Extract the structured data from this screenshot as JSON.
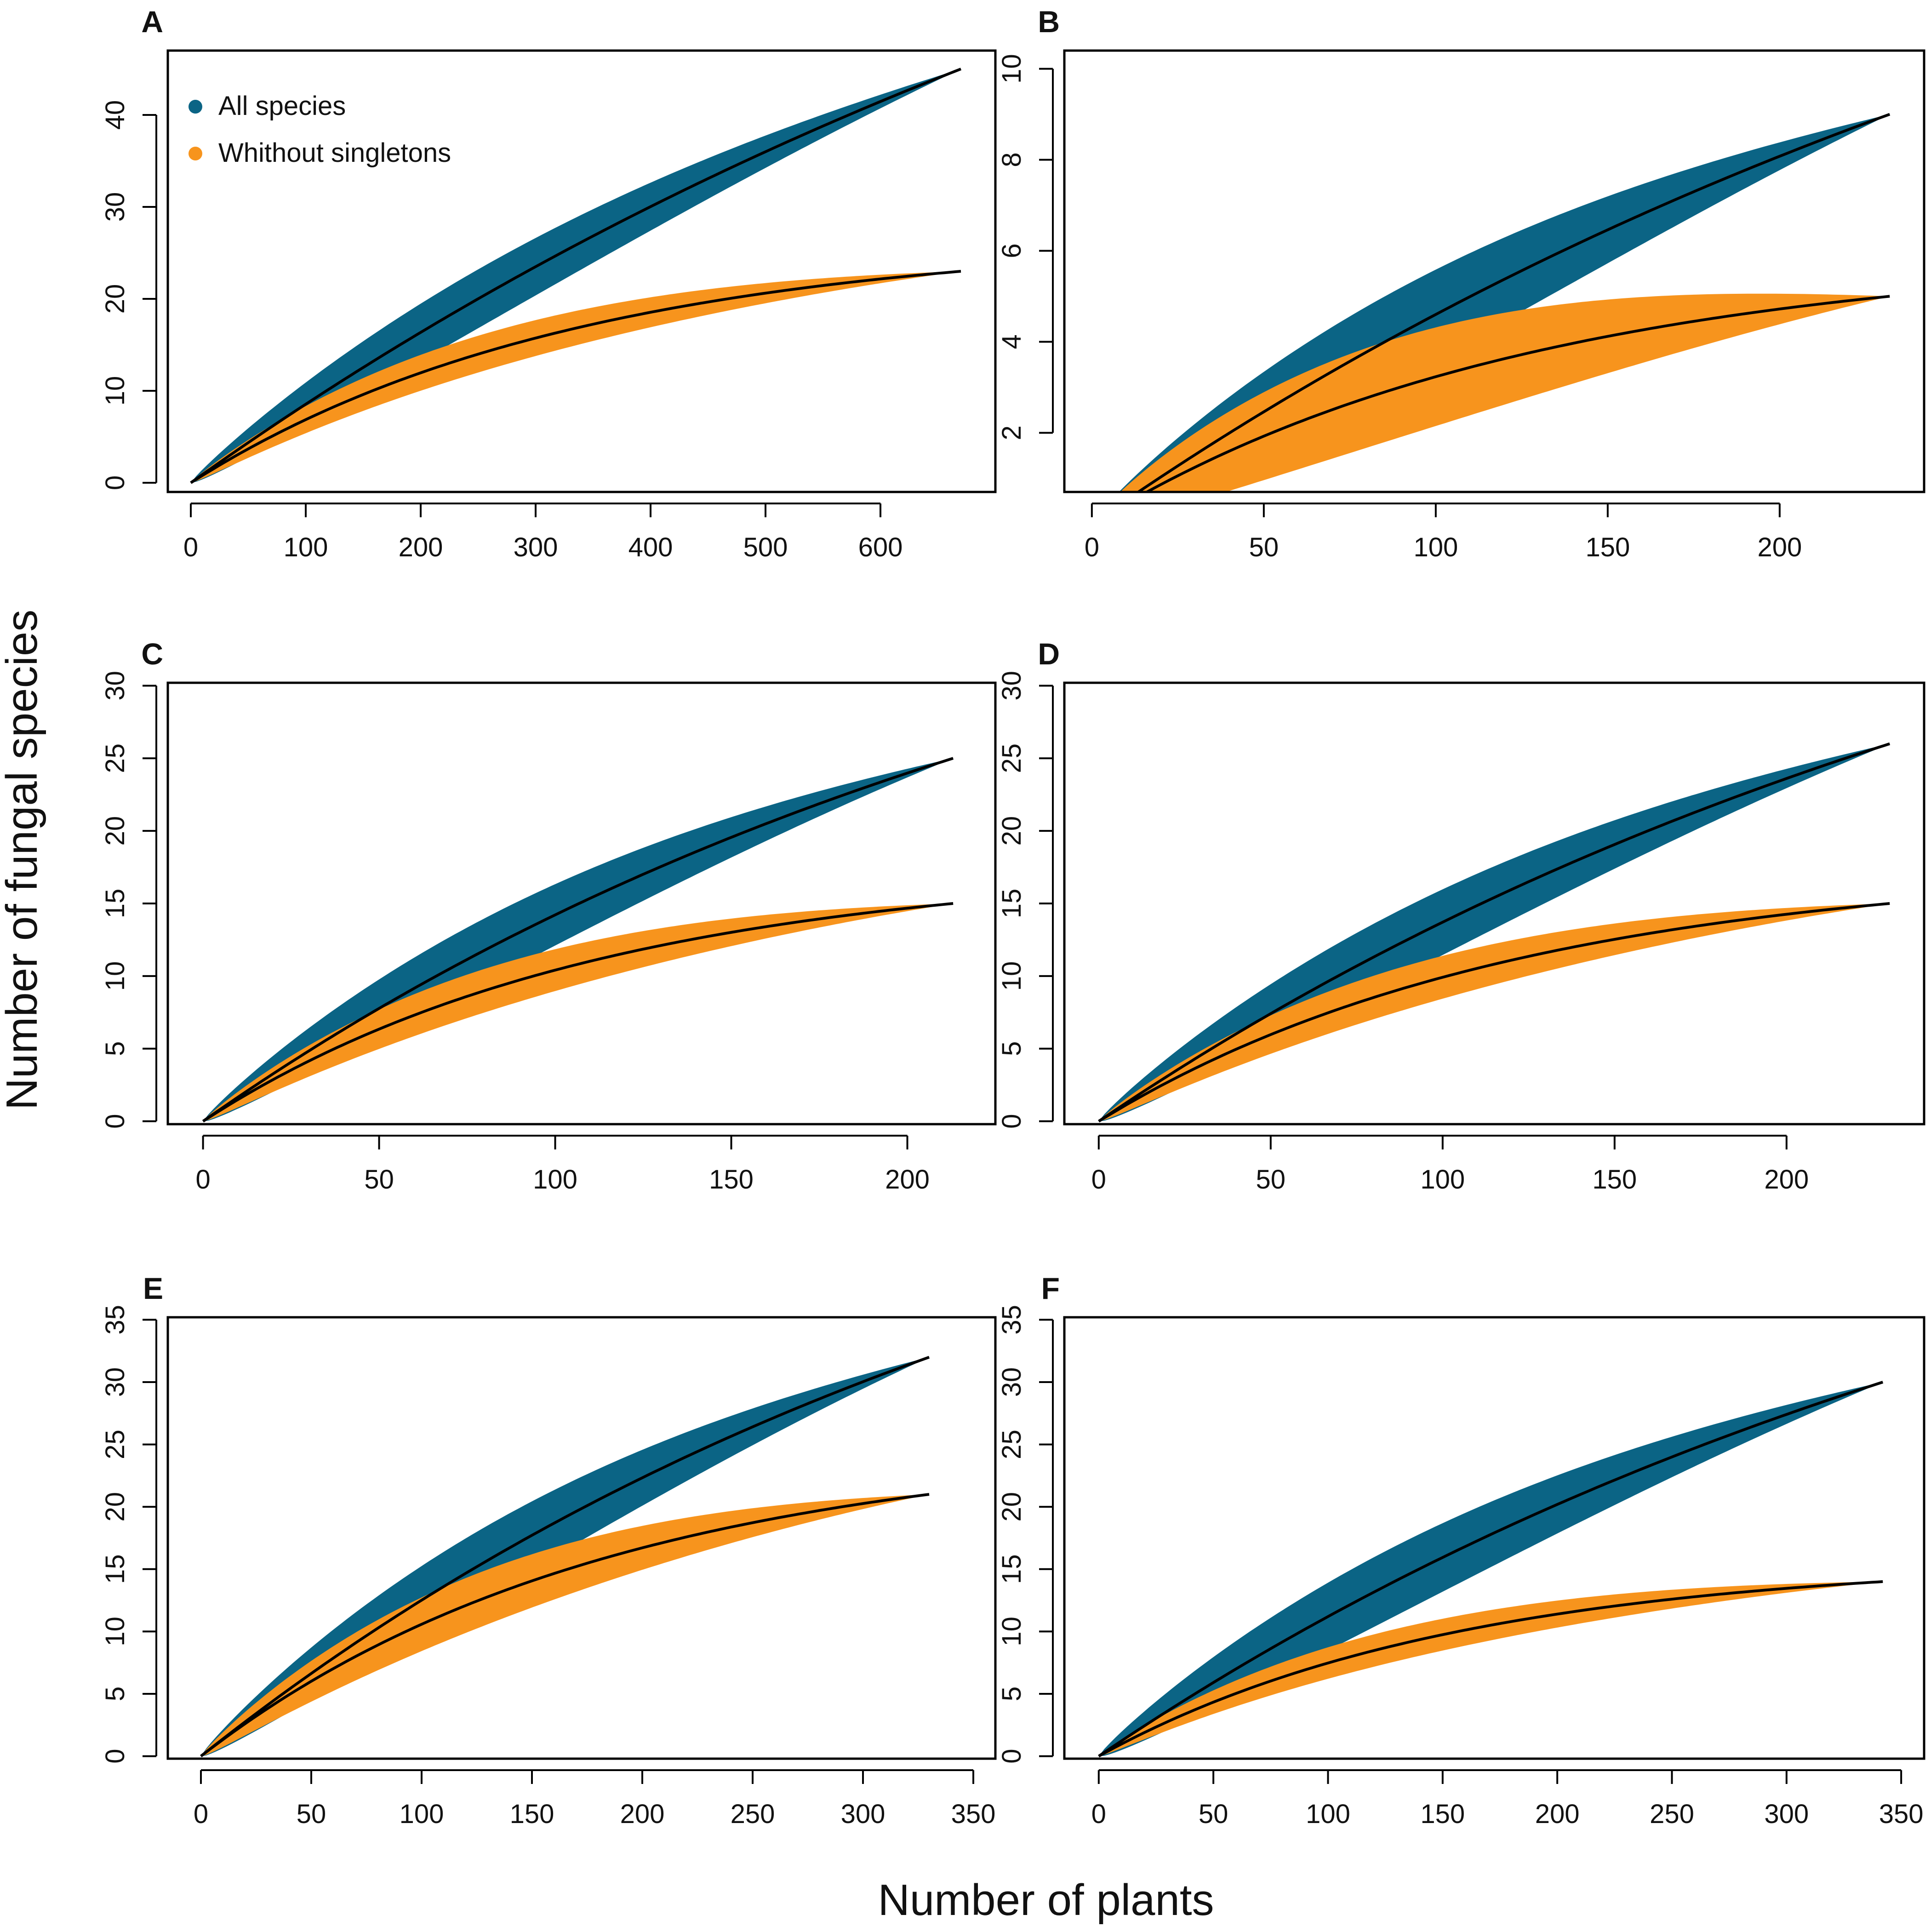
{
  "figure": {
    "xlabel": "Number of plants",
    "ylabel": "Number of fungal species"
  },
  "legend": {
    "placement": "top-left of panel A",
    "items": [
      {
        "label": "All species",
        "color": "#0b6485"
      },
      {
        "label": "Whithout singletons",
        "color": "#f7941d"
      }
    ]
  },
  "colors": {
    "all": "#0b6485",
    "nosing": "#f7941d",
    "line": "#000000"
  },
  "chart_data": [
    {
      "type": "area",
      "panel": "A",
      "xlim": [
        -20,
        700
      ],
      "ylim": [
        -1,
        47
      ],
      "xticks": [
        0,
        100,
        200,
        300,
        400,
        500,
        600
      ],
      "yticks": [
        0,
        10,
        20,
        30,
        40
      ],
      "series": [
        {
          "name": "All species",
          "x_max": 670,
          "y_max": 45,
          "shape": 0.6,
          "band": 3.2
        },
        {
          "name": "Whithout singletons",
          "x_max": 670,
          "y_max": 23,
          "shape": 2.0,
          "band": 2.0
        }
      ]
    },
    {
      "type": "area",
      "panel": "B",
      "xlim": [
        -8,
        242
      ],
      "ylim": [
        0.7,
        10.4
      ],
      "xticks": [
        0,
        50,
        100,
        150,
        200
      ],
      "yticks": [
        2,
        4,
        6,
        8,
        10
      ],
      "series": [
        {
          "name": "All species",
          "x_max": 232,
          "y_max": 9,
          "shape": 0.65,
          "band": 1.0
        },
        {
          "name": "Whithout singletons",
          "x_max": 232,
          "y_max": 5,
          "shape": 1.8,
          "band": 1.1
        }
      ]
    },
    {
      "type": "area",
      "panel": "C",
      "xlim": [
        -10,
        225
      ],
      "ylim": [
        -0.2,
        30.2
      ],
      "xticks": [
        0,
        50,
        100,
        150,
        200
      ],
      "yticks": [
        0,
        5,
        10,
        15,
        20,
        25,
        30
      ],
      "series": [
        {
          "name": "All species",
          "x_max": 213,
          "y_max": 25,
          "shape": 0.8,
          "band": 2.2
        },
        {
          "name": "Whithout singletons",
          "x_max": 213,
          "y_max": 15,
          "shape": 1.9,
          "band": 1.5
        }
      ]
    },
    {
      "type": "area",
      "panel": "D",
      "xlim": [
        -10,
        240
      ],
      "ylim": [
        -0.2,
        30.2
      ],
      "xticks": [
        0,
        50,
        100,
        150,
        200
      ],
      "yticks": [
        0,
        5,
        10,
        15,
        20,
        25,
        30
      ],
      "series": [
        {
          "name": "All species",
          "x_max": 230,
          "y_max": 26,
          "shape": 0.75,
          "band": 2.3
        },
        {
          "name": "Whithout singletons",
          "x_max": 230,
          "y_max": 15,
          "shape": 1.9,
          "band": 1.5
        }
      ]
    },
    {
      "type": "area",
      "panel": "E",
      "xlim": [
        -15,
        360
      ],
      "ylim": [
        -0.2,
        35.2
      ],
      "xticks": [
        0,
        50,
        100,
        150,
        200,
        250,
        300,
        350
      ],
      "yticks": [
        0,
        5,
        10,
        15,
        20,
        25,
        30,
        35
      ],
      "series": [
        {
          "name": "All species",
          "x_max": 330,
          "y_max": 32,
          "shape": 0.8,
          "band": 2.8
        },
        {
          "name": "Whithout singletons",
          "x_max": 330,
          "y_max": 21,
          "shape": 1.8,
          "band": 2.2
        }
      ]
    },
    {
      "type": "area",
      "panel": "F",
      "xlim": [
        -15,
        360
      ],
      "ylim": [
        -0.2,
        35.2
      ],
      "xticks": [
        0,
        50,
        100,
        150,
        200,
        250,
        300,
        350
      ],
      "yticks": [
        0,
        5,
        10,
        15,
        20,
        25,
        30,
        35
      ],
      "series": [
        {
          "name": "All species",
          "x_max": 342,
          "y_max": 30,
          "shape": 0.75,
          "band": 2.8
        },
        {
          "name": "Whithout singletons",
          "x_max": 342,
          "y_max": 14,
          "shape": 2.2,
          "band": 1.3
        }
      ]
    }
  ]
}
